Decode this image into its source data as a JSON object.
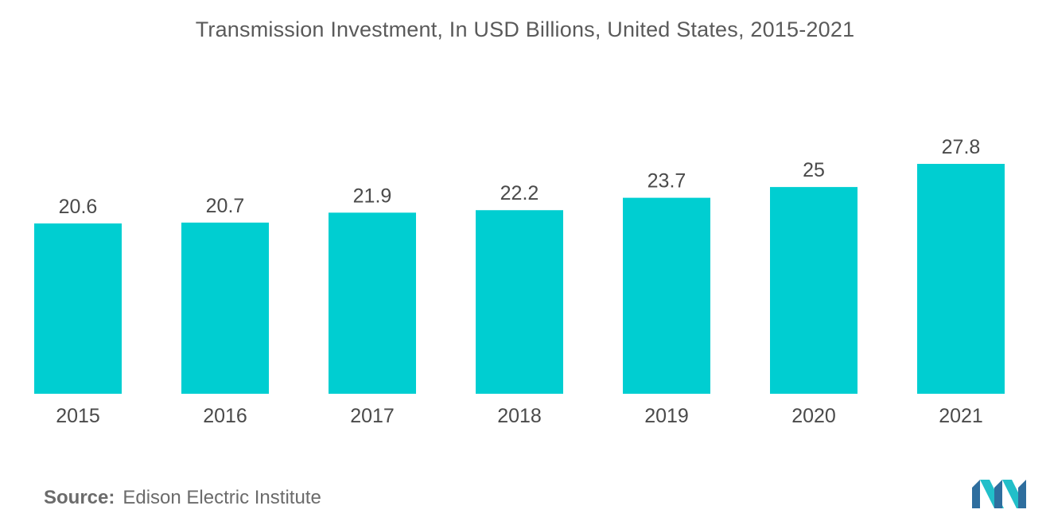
{
  "chart_data": {
    "type": "bar",
    "title": "Transmission Investment, In USD Billions, United States, 2015-2021",
    "categories": [
      "2015",
      "2016",
      "2017",
      "2018",
      "2019",
      "2020",
      "2021"
    ],
    "values": [
      20.6,
      20.7,
      21.9,
      22.2,
      23.7,
      25,
      27.8
    ],
    "value_labels": [
      "20.6",
      "20.7",
      "21.9",
      "22.2",
      "23.7",
      "25",
      "27.8"
    ],
    "xlabel": "",
    "ylabel": "",
    "ylim": [
      0,
      27.8
    ],
    "grid": false,
    "legend": "none",
    "colors": {
      "bar": "#00ced1",
      "text": "#4a4a4a"
    }
  },
  "footer": {
    "source_label": "Source:",
    "source_text": "Edison Electric Institute"
  },
  "logo": {
    "icon": "mordor-intelligence-logo-icon",
    "colors": [
      "#2e6e9e",
      "#21bfc9"
    ]
  }
}
